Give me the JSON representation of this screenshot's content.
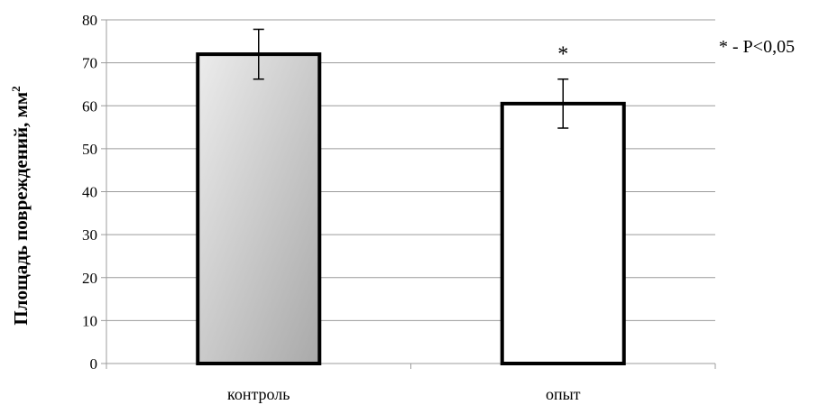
{
  "chart_data": {
    "type": "bar",
    "categories": [
      "контроль",
      "опыт"
    ],
    "values": [
      72,
      60.5
    ],
    "error": [
      5.8,
      5.7
    ],
    "ylim": [
      0,
      80
    ],
    "yticks": [
      "0",
      "10",
      "20",
      "30",
      "40",
      "50",
      "60",
      "70",
      "80"
    ],
    "ylabel": "Площадь повреждений, мм",
    "ylabel_sup": "2",
    "significance_marks": [
      "",
      "*"
    ],
    "annotation": "* - P<0,05",
    "grid": true,
    "bar_fills": [
      "gradient-gray",
      "white"
    ],
    "colors": {
      "bar_edge": "#000000",
      "gradient_light": "#ececec",
      "gradient_dark": "#a9a9a9",
      "grid": "#9c9c9c"
    }
  }
}
